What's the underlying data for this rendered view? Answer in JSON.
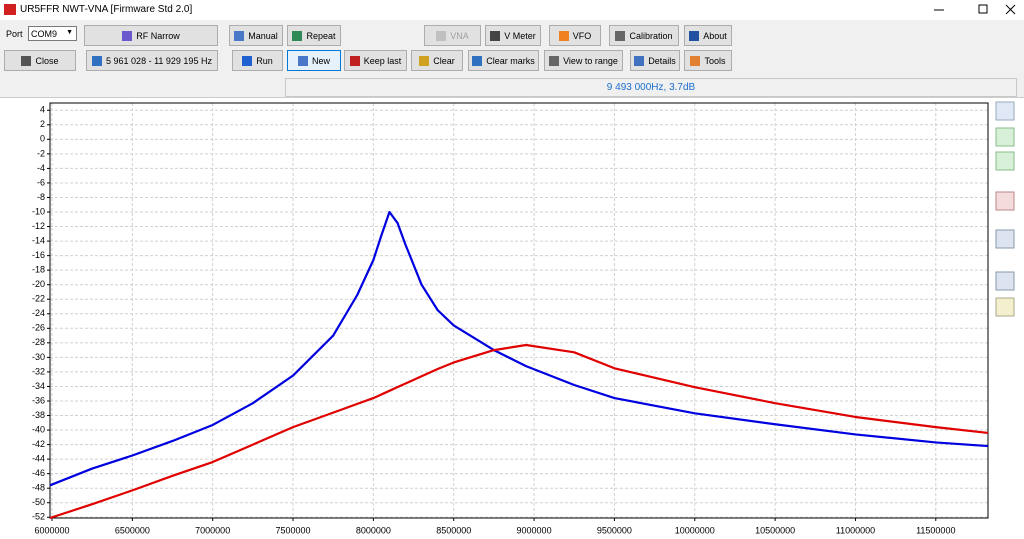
{
  "window": {
    "title": "UR5FFR NWT-VNA [Firmware Std 2.0]"
  },
  "toolbar": {
    "port_label": "Port",
    "port": "COM9",
    "row1": [
      "RF Narrow",
      "Manual",
      "Repeat",
      "VNA",
      "V Meter",
      "VFO",
      "Calibration",
      "About"
    ],
    "row2": [
      "Close",
      "5 961 028 - 11 929 195 Hz",
      "Run",
      "New",
      "Keep last",
      "Clear",
      "Clear marks",
      "View to range",
      "Details",
      "Tools"
    ]
  },
  "status": "9 493 000Hz, 3.7dB",
  "chart_data": {
    "type": "line",
    "x": [
      5987500,
      6250000,
      6500000,
      6750000,
      7000000,
      7250000,
      7500000,
      7750000,
      7900000,
      8000000,
      8050000,
      8100000,
      8150000,
      8200000,
      8300000,
      8400000,
      8500000,
      8750000,
      8950000,
      9250000,
      9500000,
      10000000,
      10500000,
      11000000,
      11500000,
      11825000
    ],
    "series": [
      {
        "color": "#0000e0",
        "values": [
          -47.6,
          -45.3,
          -43.5,
          -41.5,
          -39.3,
          -36.3,
          -32.5,
          -27,
          -21.4,
          -16.6,
          -13.2,
          -10,
          -11.5,
          -14.5,
          -20,
          -23.5,
          -25.6,
          -29,
          -31.2,
          -33.8,
          -35.6,
          -37.7,
          -39.2,
          -40.6,
          -41.7,
          -42.2
        ]
      },
      {
        "color": "#e00000",
        "values": [
          -52.1,
          -50.2,
          -48.3,
          -46.3,
          -44.4,
          -42,
          -39.6,
          -37.6,
          -36.4,
          -35.6,
          -35.1,
          -34.6,
          -34.1,
          -33.6,
          -32.6,
          -31.6,
          -30.7,
          -29,
          -28.3,
          -29.3,
          -31.5,
          -34.1,
          -36.3,
          -38.2,
          -39.6,
          -40.4
        ]
      }
    ],
    "xlim": [
      5987500,
      11825000
    ],
    "xticks": [
      6000000,
      6500000,
      7000000,
      7500000,
      8000000,
      8500000,
      9000000,
      9500000,
      10000000,
      10500000,
      11000000,
      11500000
    ],
    "ylim": [
      -52.1,
      5
    ],
    "yticks": [
      4,
      2,
      0,
      -2,
      -4,
      -6,
      -8,
      -10,
      -12,
      -14,
      -16,
      -18,
      -20,
      -22,
      -24,
      -26,
      -28,
      -30,
      -32,
      -34,
      -36,
      -38,
      -40,
      -42,
      -44,
      -46,
      -48,
      -50,
      -52
    ],
    "grid": true
  }
}
